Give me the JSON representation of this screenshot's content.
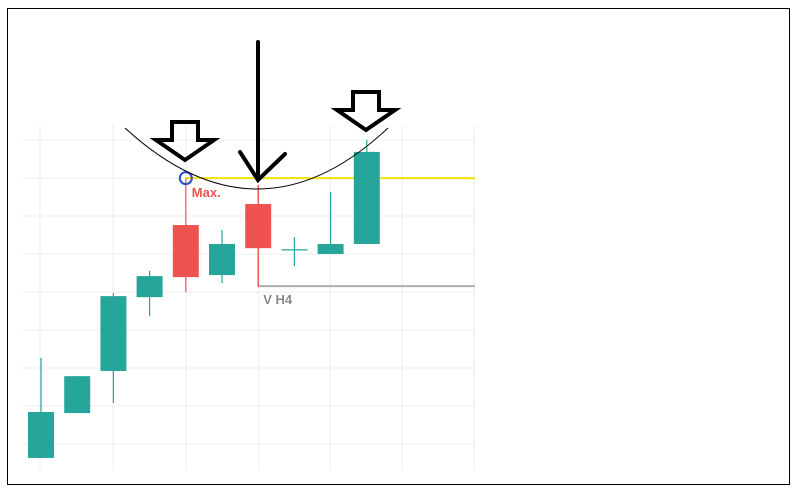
{
  "chart_data": {
    "type": "candlestick",
    "categories": [
      null,
      null,
      null,
      null,
      null,
      null,
      null,
      null,
      null,
      null
    ],
    "open": [
      3.5,
      16.5,
      28.7,
      50.1,
      71.0,
      56.5,
      77.1,
      63.8,
      62.6,
      65.5
    ],
    "high": [
      32.5,
      27.2,
      51.3,
      57.7,
      84.6,
      69.6,
      82.6,
      67.5,
      80.6,
      95.7
    ],
    "low": [
      3.5,
      16.5,
      19.4,
      44.6,
      51.6,
      54.2,
      53.0,
      59.1,
      62.6,
      65.5
    ],
    "close": [
      16.8,
      27.2,
      50.4,
      56.2,
      55.9,
      65.5,
      64.3,
      63.8,
      65.5,
      92.2
    ],
    "up_color": "#26a69a",
    "down_color": "#ef5350",
    "ylim": [
      0,
      100
    ],
    "levels": [
      {
        "label": "Max.",
        "value": 84.6,
        "color": "#f5e10a",
        "label_color": "#ef5350"
      },
      {
        "label": "V H4",
        "value": 53.3,
        "color": "#b0b0b0",
        "label_color": "#888888"
      }
    ]
  }
}
